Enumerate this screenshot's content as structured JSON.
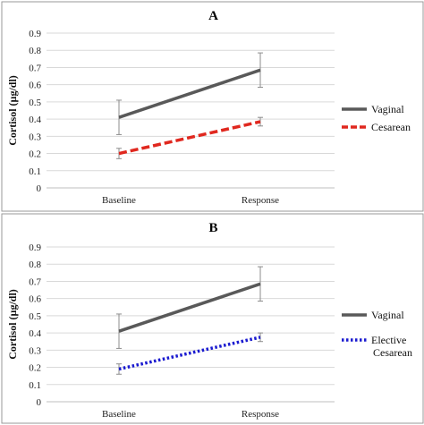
{
  "chart_data": [
    {
      "type": "line",
      "title": "A",
      "ylabel": "Cortisol (µg/dl)",
      "xlabel": "",
      "categories": [
        "Baseline",
        "Response"
      ],
      "ylim": [
        0,
        0.9
      ],
      "yticks": [
        "0",
        "0.1",
        "0.2",
        "0.3",
        "0.4",
        "0.5",
        "0.6",
        "0.7",
        "0.8",
        "0.9"
      ],
      "grid": true,
      "legend_position": "right",
      "series": [
        {
          "name": "Vaginal",
          "values": [
            0.41,
            0.685
          ],
          "error": [
            0.1,
            0.1
          ],
          "color": "#595959",
          "style": "solid"
        },
        {
          "name": "Cesarean",
          "values": [
            0.2,
            0.385
          ],
          "error": [
            0.03,
            0.025
          ],
          "color": "#e0281f",
          "style": "dashed"
        }
      ]
    },
    {
      "type": "line",
      "title": "B",
      "ylabel": "Cortisol (µg/dl)",
      "xlabel": "",
      "categories": [
        "Baseline",
        "Response"
      ],
      "ylim": [
        0,
        0.9
      ],
      "yticks": [
        "0",
        "0.1",
        "0.2",
        "0.3",
        "0.4",
        "0.5",
        "0.6",
        "0.7",
        "0.8",
        "0.9"
      ],
      "grid": true,
      "legend_position": "right",
      "series": [
        {
          "name": "Vaginal",
          "values": [
            0.41,
            0.685
          ],
          "error": [
            0.1,
            0.1
          ],
          "color": "#595959",
          "style": "solid"
        },
        {
          "name": "Elective Cesarean",
          "legend_lines": [
            "Elective",
            "Cesarean"
          ],
          "values": [
            0.19,
            0.375
          ],
          "error": [
            0.03,
            0.025
          ],
          "color": "#1a1ad0",
          "style": "dotted"
        }
      ]
    }
  ]
}
